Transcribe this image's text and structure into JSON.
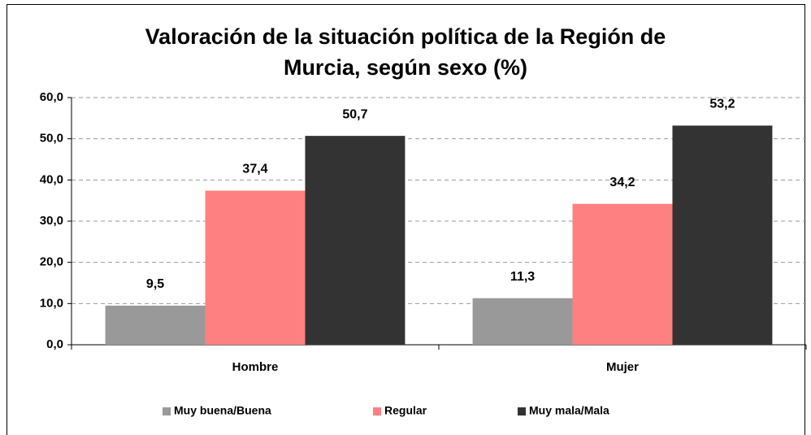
{
  "chart_data": {
    "type": "bar",
    "title": "Valoración de la situación política de la Región de Murcia, según sexo (%)",
    "categories": [
      "Hombre",
      "Mujer"
    ],
    "series": [
      {
        "name": "Muy buena/Buena",
        "color": "#999999",
        "values": [
          9.5,
          11.3
        ],
        "value_labels": [
          "9,5",
          "11,3"
        ]
      },
      {
        "name": "Regular",
        "color": "#ff8080",
        "values": [
          37.4,
          34.2
        ],
        "value_labels": [
          "37,4",
          "34,2"
        ]
      },
      {
        "name": "Muy mala/Mala",
        "color": "#333333",
        "values": [
          50.7,
          53.2
        ],
        "value_labels": [
          "50,7",
          "53,2"
        ]
      }
    ],
    "ylim": [
      0,
      60
    ],
    "yticks": [
      {
        "value": 0,
        "label": "0,0"
      },
      {
        "value": 10,
        "label": "10,0"
      },
      {
        "value": 20,
        "label": "20,0"
      },
      {
        "value": 30,
        "label": "30,0"
      },
      {
        "value": 40,
        "label": "40,0"
      },
      {
        "value": 50,
        "label": "50,0"
      },
      {
        "value": 60,
        "label": "60,0"
      }
    ],
    "grid": true,
    "legend": "bottom"
  }
}
